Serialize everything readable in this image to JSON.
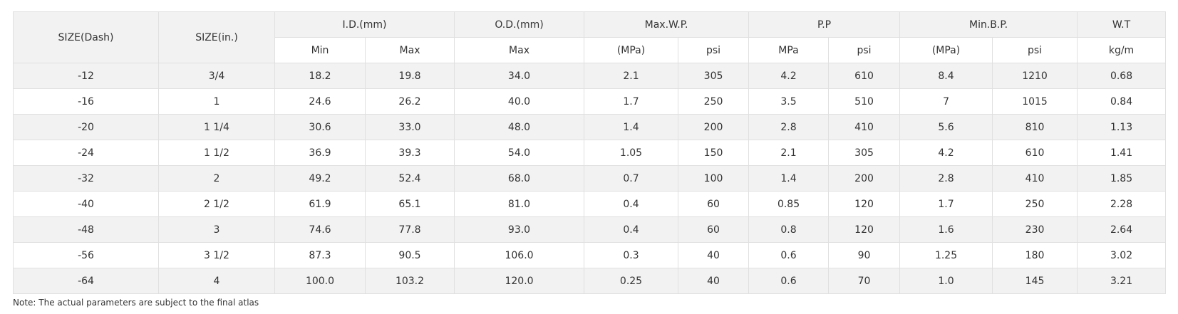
{
  "table": {
    "header": {
      "spanning": [
        "SIZE(Dash)",
        "SIZE(in.)"
      ],
      "groups": [
        "I.D.(mm)",
        "O.D.(mm)",
        "Max.W.P.",
        "P.P",
        "Min.B.P.",
        "W.T"
      ],
      "subs": [
        "Min",
        "Max",
        "Max",
        "(MPa)",
        "psi",
        "MPa",
        "psi",
        "(MPa)",
        "psi",
        "kg/m"
      ]
    },
    "rows": [
      [
        "-12",
        "3/4",
        "18.2",
        "19.8",
        "34.0",
        "2.1",
        "305",
        "4.2",
        "610",
        "8.4",
        "1210",
        "0.68"
      ],
      [
        "-16",
        "1",
        "24.6",
        "26.2",
        "40.0",
        "1.7",
        "250",
        "3.5",
        "510",
        "7",
        "1015",
        "0.84"
      ],
      [
        "-20",
        "1 1/4",
        "30.6",
        "33.0",
        "48.0",
        "1.4",
        "200",
        "2.8",
        "410",
        "5.6",
        "810",
        "1.13"
      ],
      [
        "-24",
        "1 1/2",
        "36.9",
        "39.3",
        "54.0",
        "1.05",
        "150",
        "2.1",
        "305",
        "4.2",
        "610",
        "1.41"
      ],
      [
        "-32",
        "2",
        "49.2",
        "52.4",
        "68.0",
        "0.7",
        "100",
        "1.4",
        "200",
        "2.8",
        "410",
        "1.85"
      ],
      [
        "-40",
        "2 1/2",
        "61.9",
        "65.1",
        "81.0",
        "0.4",
        "60",
        "0.85",
        "120",
        "1.7",
        "250",
        "2.28"
      ],
      [
        "-48",
        "3",
        "74.6",
        "77.8",
        "93.0",
        "0.4",
        "60",
        "0.8",
        "120",
        "1.6",
        "230",
        "2.64"
      ],
      [
        "-56",
        "3 1/2",
        "87.3",
        "90.5",
        "106.0",
        "0.3",
        "40",
        "0.6",
        "90",
        "1.25",
        "180",
        "3.02"
      ],
      [
        "-64",
        "4",
        "100.0",
        "103.2",
        "120.0",
        "0.25",
        "40",
        "0.6",
        "70",
        "1.0",
        "145",
        "3.21"
      ]
    ]
  },
  "note": "Note: The actual parameters are subject to the final atlas"
}
